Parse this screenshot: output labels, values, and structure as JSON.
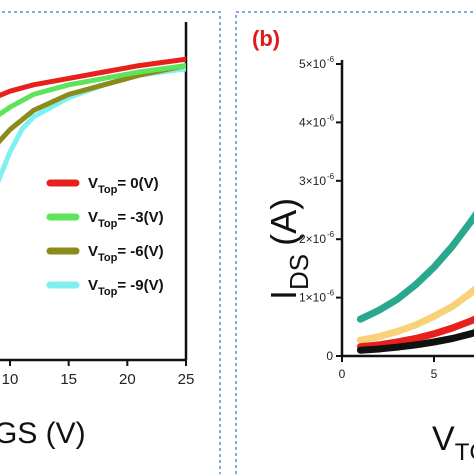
{
  "chart_data": [
    {
      "panel": "a",
      "type": "line",
      "xlabel_visible": "GS (V)",
      "x_ticks": [
        "10",
        "15",
        "20",
        "25"
      ],
      "x_range": [
        5,
        25
      ],
      "legend_placement": "center-right",
      "legend": [
        {
          "prefix": "V",
          "sub": "Top",
          "suffix": "= 0(V)",
          "color": "#e8201c"
        },
        {
          "prefix": "V",
          "sub": "Top",
          "suffix": "= -3(V)",
          "color": "#5fe35b"
        },
        {
          "prefix": "V",
          "sub": "Top",
          "suffix": "= -6(V)",
          "color": "#8c8a18"
        },
        {
          "prefix": "V",
          "sub": "Top",
          "suffix": "= -9(V)",
          "color": "#7ff0f2"
        }
      ],
      "series": [
        {
          "name": "VTop = 0(V)",
          "color": "#e8201c",
          "x": [
            5,
            6,
            8,
            10,
            12,
            15,
            18,
            21,
            25
          ],
          "y": [
            0.74,
            0.77,
            0.81,
            0.84,
            0.86,
            0.88,
            0.9,
            0.92,
            0.94
          ]
        },
        {
          "name": "VTop = -3(V)",
          "color": "#5fe35b",
          "x": [
            5,
            6,
            8,
            10,
            12,
            15,
            18,
            21,
            25
          ],
          "y": [
            0.6,
            0.67,
            0.74,
            0.79,
            0.83,
            0.86,
            0.88,
            0.9,
            0.92
          ]
        },
        {
          "name": "VTop = -6(V)",
          "color": "#8c8a18",
          "x": [
            5,
            6,
            7,
            8,
            9,
            10,
            12,
            15,
            18,
            21,
            25
          ],
          "y": [
            0.43,
            0.52,
            0.59,
            0.64,
            0.68,
            0.72,
            0.78,
            0.83,
            0.86,
            0.89,
            0.92
          ]
        },
        {
          "name": "VTop = -9(V)",
          "color": "#7ff0f2",
          "x": [
            5,
            6,
            7,
            7.5,
            8,
            8.5,
            9,
            10,
            11,
            12,
            15,
            18,
            21,
            25
          ],
          "y": [
            -0.3,
            -0.05,
            0.15,
            0.28,
            0.4,
            0.49,
            0.56,
            0.65,
            0.72,
            0.76,
            0.82,
            0.86,
            0.89,
            0.91
          ]
        }
      ]
    },
    {
      "panel": "b",
      "type": "line",
      "panel_label": "(b)",
      "ylabel_main": "I",
      "ylabel_sub": "DS",
      "ylabel_unit": "(A)",
      "xlabel_visible": "V",
      "xlabel_sub": "TC",
      "x_ticks": [
        "0",
        "5"
      ],
      "y_ticks": [
        "0",
        "1×10",
        "2×10",
        "3×10",
        "4×10",
        "5×10"
      ],
      "y_tick_exponent": "-6",
      "x_range": [
        0,
        9.5
      ],
      "y_range": [
        0,
        5e-06
      ],
      "series": [
        {
          "color": "#2aa88c",
          "x": [
            1,
            2,
            3,
            4,
            5,
            6,
            7,
            8,
            9.5
          ],
          "y": [
            6.3e-07,
            7.8e-07,
            9.7e-07,
            1.22e-06,
            1.52e-06,
            1.88e-06,
            2.3e-06,
            2.75e-06,
            3.6e-06
          ]
        },
        {
          "color": "#f7d27a",
          "x": [
            1,
            2,
            3,
            4,
            5,
            6,
            7,
            8,
            9.5
          ],
          "y": [
            2.7e-07,
            3.3e-07,
            4.2e-07,
            5.3e-07,
            6.8e-07,
            8.5e-07,
            1.08e-06,
            1.35e-06,
            1.8e-06
          ]
        },
        {
          "color": "#e8201c",
          "x": [
            1,
            2,
            3,
            4,
            5,
            6,
            7,
            8,
            9.5
          ],
          "y": [
            1.6e-07,
            1.9e-07,
            2.4e-07,
            3e-07,
            3.8e-07,
            4.8e-07,
            6e-07,
            7.5e-07,
            1e-06
          ]
        },
        {
          "color": "#111111",
          "x": [
            1,
            2,
            3,
            4,
            5,
            6,
            7,
            8,
            9.5
          ],
          "y": [
            1e-07,
            1.2e-07,
            1.5e-07,
            1.9e-07,
            2.4e-07,
            3e-07,
            3.8e-07,
            4.8e-07,
            6.5e-07
          ]
        }
      ]
    }
  ]
}
